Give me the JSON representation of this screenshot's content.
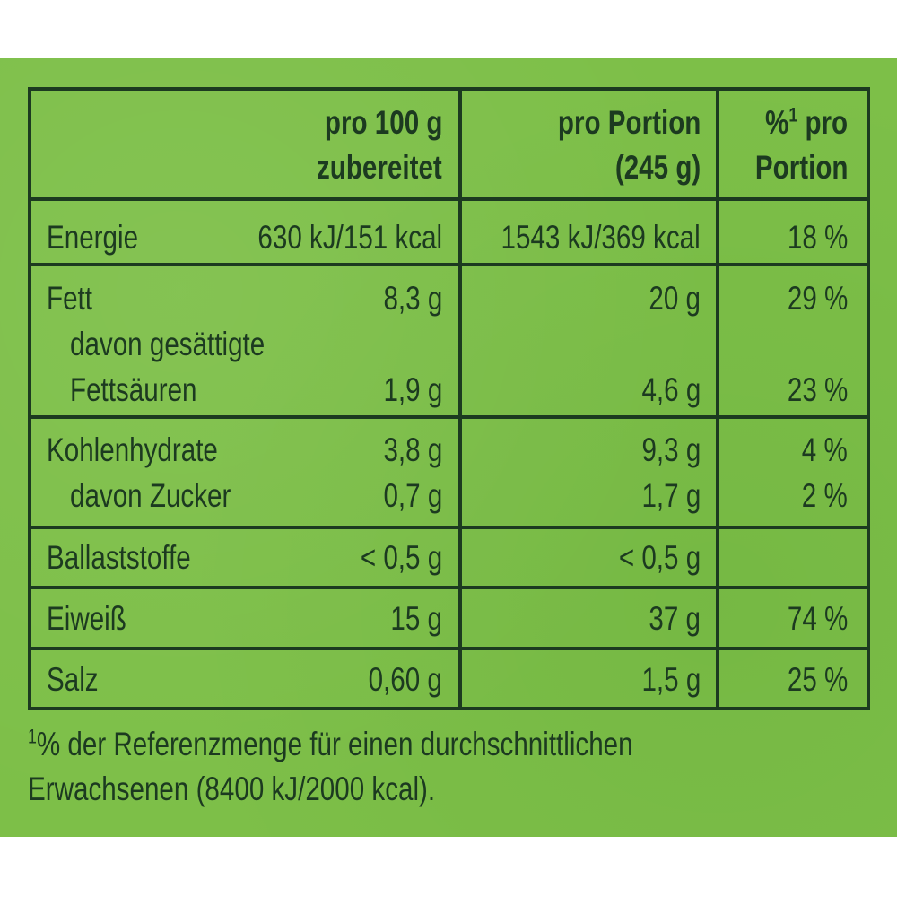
{
  "header": {
    "col1": [
      "pro 100 g",
      "zubereitet"
    ],
    "col2": [
      "pro Portion",
      "(245 g)"
    ],
    "col3_sup": "1",
    "col3": [
      "%",
      "pro",
      "Portion"
    ]
  },
  "rows": {
    "energie": {
      "label": "Energie",
      "v100": "630 kJ/151 kcal",
      "vport": "1543 kJ/369 kcal",
      "pct": "18 %"
    },
    "fett": {
      "label": "Fett",
      "v100": "8,3 g",
      "vport": "20 g",
      "pct": "29 %"
    },
    "gesaettigte": {
      "label1": "davon gesättigte",
      "label2": "Fettsäuren",
      "v100": "1,9 g",
      "vport": "4,6 g",
      "pct": "23 %"
    },
    "kohlenhydrate": {
      "label": "Kohlenhydrate",
      "v100": "3,8 g",
      "vport": "9,3 g",
      "pct": "4 %"
    },
    "zucker": {
      "label": "davon Zucker",
      "v100": "0,7 g",
      "vport": "1,7 g",
      "pct": "2 %"
    },
    "ballaststoffe": {
      "label": "Ballaststoffe",
      "v100": "< 0,5 g",
      "vport": "< 0,5 g",
      "pct": ""
    },
    "eiweiss": {
      "label": "Eiweiß",
      "v100": "15 g",
      "vport": "37 g",
      "pct": "74 %"
    },
    "salz": {
      "label": "Salz",
      "v100": "0,60 g",
      "vport": "1,5 g",
      "pct": "25 %"
    }
  },
  "footnote": {
    "sup": "1",
    "line1": "% der Referenzmenge für einen durchschnittlichen",
    "line2": "Erwachsenen (8400 kJ/2000 kcal)."
  },
  "colors": {
    "background": "#7dbf48",
    "ink": "#1c3a20"
  }
}
